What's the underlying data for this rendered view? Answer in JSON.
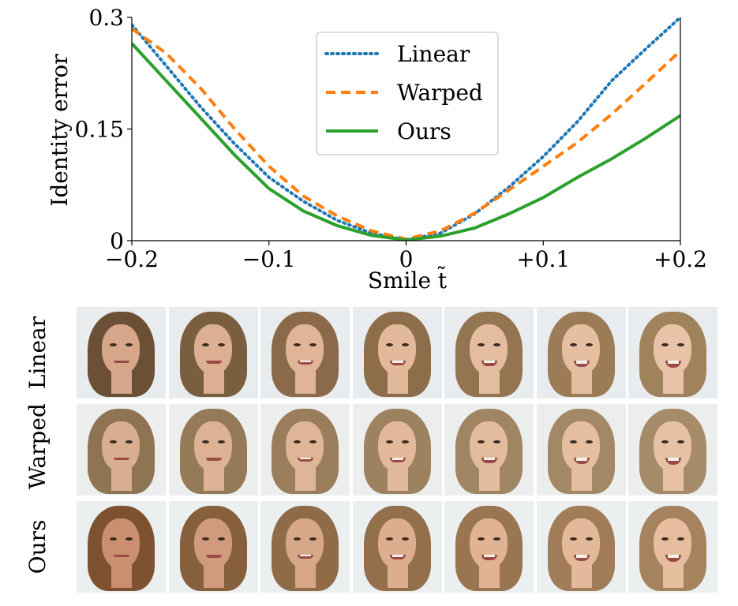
{
  "chart_data": {
    "type": "line",
    "xlabel": "Smile t̃",
    "ylabel": "Identity error",
    "xlim": [
      -0.2,
      0.2
    ],
    "ylim": [
      0,
      0.3
    ],
    "x_ticks": [
      -0.2,
      -0.1,
      0,
      0.1,
      0.2
    ],
    "x_tick_labels": [
      "−0.2",
      "−0.1",
      "0",
      "+0.1",
      "+0.2"
    ],
    "y_ticks": [
      0,
      0.15,
      0.3
    ],
    "y_tick_labels": [
      "0",
      "0.15",
      "0.3"
    ],
    "legend_position": "top-center",
    "grid": false,
    "series": [
      {
        "name": "Linear",
        "color": "#1f77b4",
        "style": "dotted",
        "x": [
          -0.2,
          -0.175,
          -0.15,
          -0.125,
          -0.1,
          -0.075,
          -0.05,
          -0.025,
          0,
          0.025,
          0.05,
          0.075,
          0.1,
          0.125,
          0.15,
          0.175,
          0.2
        ],
        "y": [
          0.29,
          0.235,
          0.18,
          0.13,
          0.085,
          0.053,
          0.027,
          0.01,
          0.001,
          0.01,
          0.036,
          0.072,
          0.113,
          0.16,
          0.215,
          0.258,
          0.3
        ]
      },
      {
        "name": "Warped",
        "color": "#ff7f0e",
        "style": "dashed",
        "x": [
          -0.2,
          -0.175,
          -0.15,
          -0.125,
          -0.1,
          -0.075,
          -0.05,
          -0.025,
          0,
          0.025,
          0.05,
          0.075,
          0.1,
          0.125,
          0.15,
          0.175,
          0.2
        ],
        "y": [
          0.285,
          0.252,
          0.205,
          0.15,
          0.1,
          0.06,
          0.033,
          0.013,
          0.002,
          0.013,
          0.037,
          0.068,
          0.1,
          0.132,
          0.17,
          0.212,
          0.255
        ]
      },
      {
        "name": "Ours",
        "color": "#2ca02c",
        "style": "solid",
        "x": [
          -0.2,
          -0.175,
          -0.15,
          -0.125,
          -0.1,
          -0.075,
          -0.05,
          -0.025,
          0,
          0.025,
          0.05,
          0.075,
          0.1,
          0.125,
          0.15,
          0.175,
          0.2
        ],
        "y": [
          0.265,
          0.215,
          0.165,
          0.115,
          0.07,
          0.04,
          0.02,
          0.007,
          0.001,
          0.006,
          0.017,
          0.036,
          0.058,
          0.085,
          0.11,
          0.138,
          0.168
        ]
      }
    ]
  },
  "image_grid": {
    "rows": [
      {
        "label": "Linear",
        "count": 7
      },
      {
        "label": "Warped",
        "count": 7
      },
      {
        "label": "Ours",
        "count": 7
      }
    ]
  }
}
